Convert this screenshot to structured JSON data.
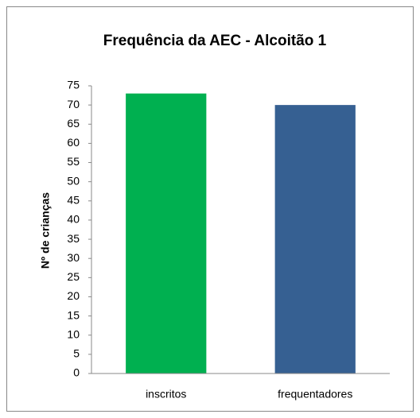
{
  "chart_data": {
    "type": "bar",
    "title": "Frequência da AEC - Alcoitão 1",
    "y_label": "Nº de crianças",
    "categories": [
      "inscritos",
      "frequentadores"
    ],
    "values": [
      73,
      70
    ],
    "colors": [
      "#00b050",
      "#366092"
    ],
    "ylim": [
      0,
      75
    ],
    "yticks": [
      0,
      5,
      10,
      15,
      20,
      25,
      30,
      35,
      40,
      45,
      50,
      55,
      60,
      65,
      70,
      75
    ],
    "grid": false
  }
}
